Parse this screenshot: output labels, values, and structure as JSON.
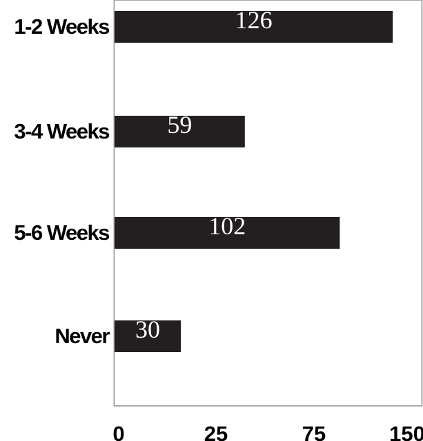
{
  "chart_data": {
    "type": "bar",
    "orientation": "horizontal",
    "categories": [
      "1-2 Weeks",
      "3-4 Weeks",
      "5-6 Weeks",
      "Never"
    ],
    "values": [
      126,
      59,
      102,
      30
    ],
    "x_ticks": [
      "0",
      "25",
      "75",
      "150"
    ],
    "title": "",
    "xlabel": "",
    "ylabel": "",
    "grid": false,
    "legend": "none",
    "colors": {
      "bar": "#231f20",
      "value_label": "#ffffff",
      "axis": "#a7a9ac",
      "text": "#000000"
    }
  }
}
